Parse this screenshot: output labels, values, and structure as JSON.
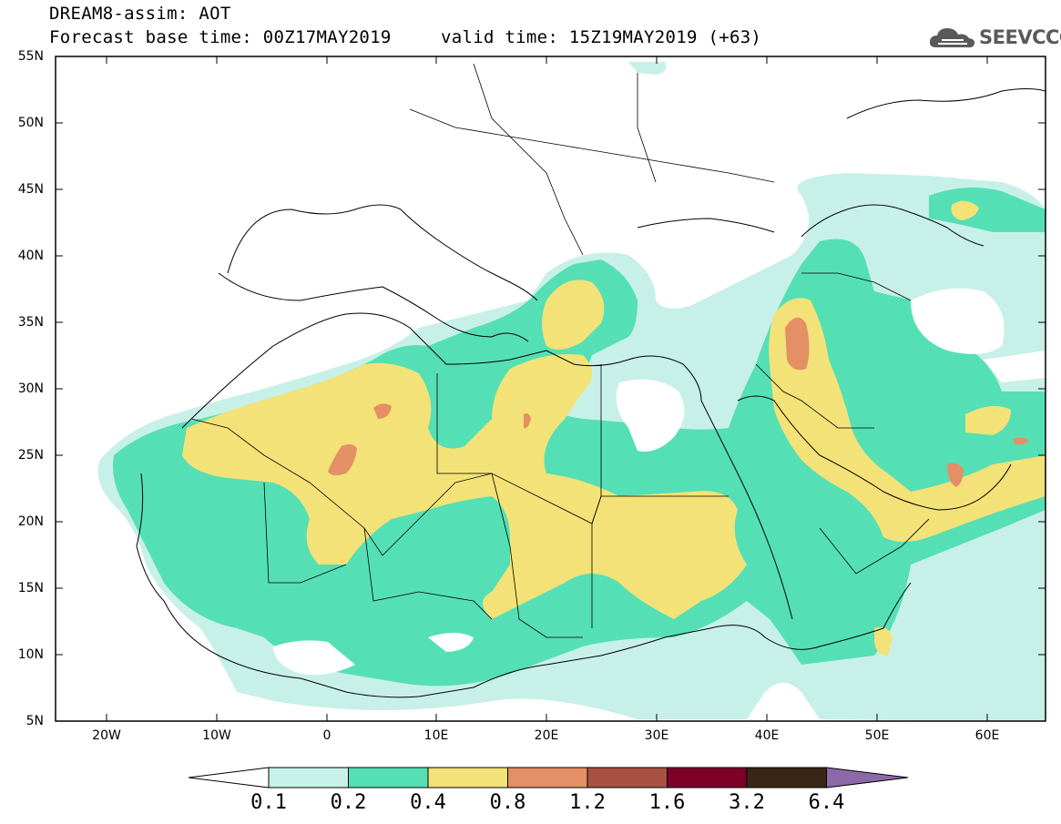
{
  "title": {
    "line1": "DREAM8-assim: AOT",
    "line2": "Forecast base time: 00Z17MAY2019",
    "valid": "valid time: 15Z19MAY2019 (+63)"
  },
  "logo": {
    "text": "SEEVCCC",
    "icon": "cloud-icon",
    "color": "#5a5a5a"
  },
  "map": {
    "variable": "AOT",
    "lon_range": [
      -25,
      65
    ],
    "lat_range": [
      5,
      55
    ],
    "y_ticks": [
      "55N",
      "50N",
      "45N",
      "40N",
      "35N",
      "30N",
      "25N",
      "20N",
      "15N",
      "10N",
      "5N"
    ],
    "x_ticks": [
      "20W",
      "10W",
      "0",
      "10E",
      "20E",
      "30E",
      "40E",
      "50E",
      "60E"
    ]
  },
  "colorbar": {
    "labels": [
      "0.1",
      "0.2",
      "0.4",
      "0.8",
      "1.2",
      "1.6",
      "3.2",
      "6.4"
    ],
    "colors": [
      "#c7f0e8",
      "#55dfb5",
      "#f3e277",
      "#e48f65",
      "#a95243",
      "#7c0027",
      "#3a2616",
      "#8c69a8"
    ],
    "extend": "both"
  }
}
